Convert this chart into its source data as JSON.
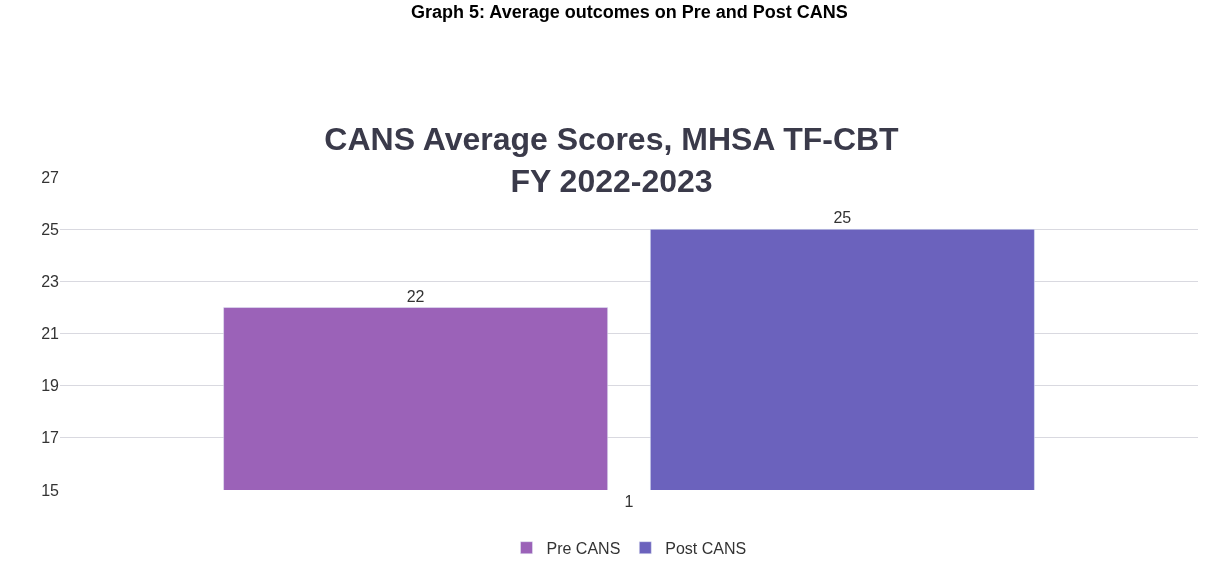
{
  "chart_data": {
    "type": "bar",
    "title": "CANS Average Scores, MHSA TF-CBT\nFY 2022-2023",
    "annotations": [
      "Graph 5: Average outcomes on Pre and Post CANS"
    ],
    "categories": [
      "1"
    ],
    "series": [
      {
        "name": "Pre CANS",
        "color": "#9b62b8",
        "values": [
          22
        ]
      },
      {
        "name": "Post CANS",
        "color": "#6b62bd",
        "values": [
          25
        ]
      }
    ],
    "ylim": [
      15,
      27
    ],
    "yticks": [
      15,
      17,
      19,
      21,
      23,
      25,
      27
    ],
    "grid": "y",
    "legend": "bottom",
    "data_labels": true
  }
}
